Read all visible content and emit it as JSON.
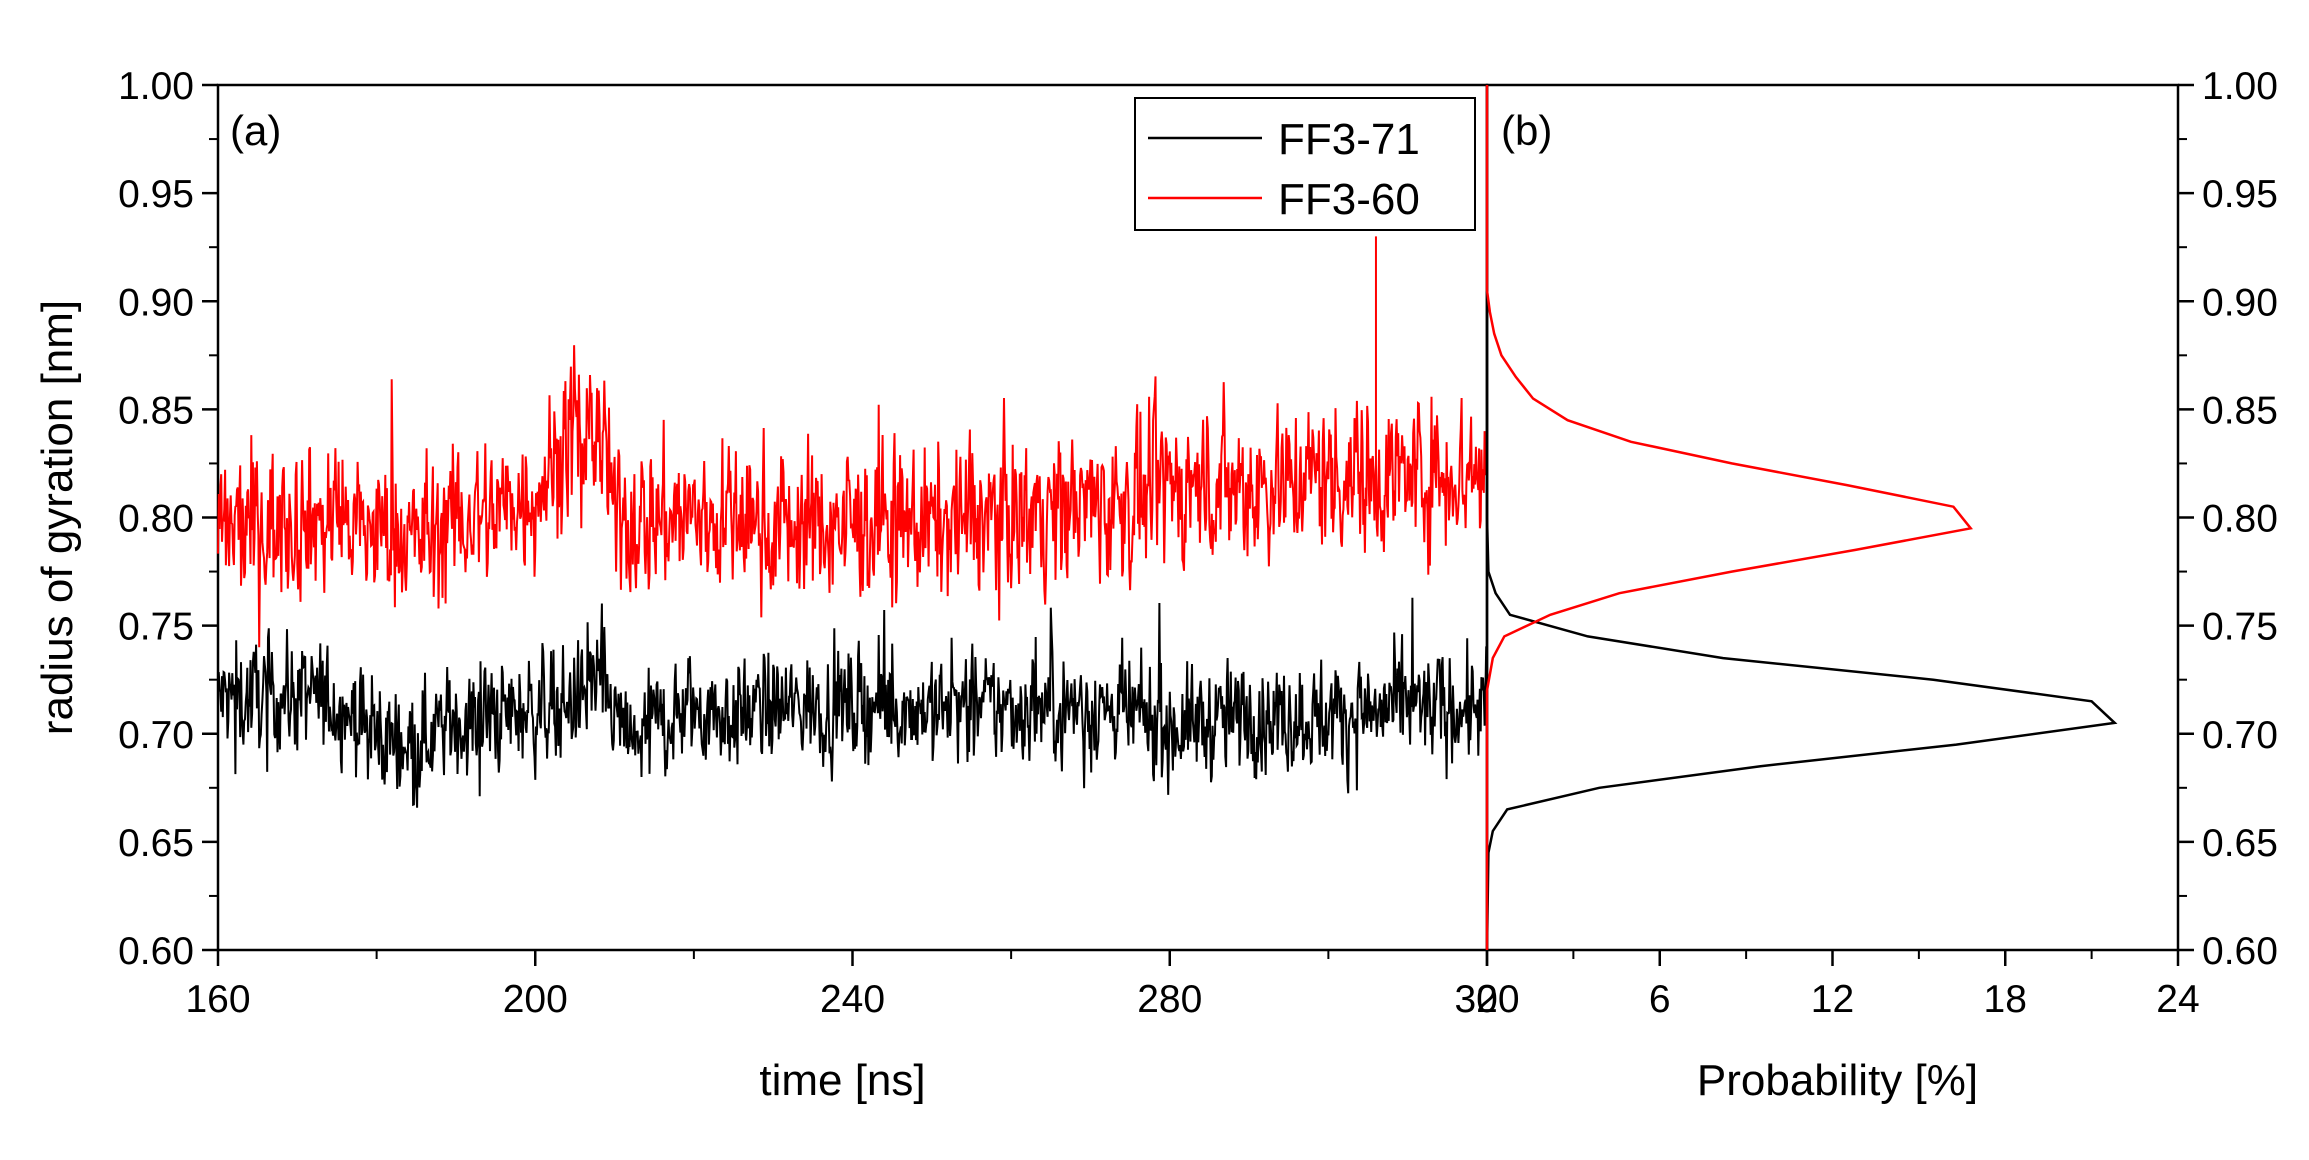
{
  "chart_data": [
    {
      "type": "line",
      "panel_label": "(a)",
      "xlabel": "time [ns]",
      "ylabel": "radius of gyration [nm]",
      "xlim": [
        160,
        320
      ],
      "ylim": [
        0.6,
        1.0
      ],
      "x_ticks": [
        160,
        200,
        240,
        280,
        320
      ],
      "x_tick_labels": [
        "160",
        "200",
        "240",
        "280",
        "320"
      ],
      "y_ticks": [
        0.6,
        0.65,
        0.7,
        0.75,
        0.8,
        0.85,
        0.9,
        0.95,
        1.0
      ],
      "y_tick_labels": [
        "0.60",
        "0.65",
        "0.70",
        "0.75",
        "0.80",
        "0.85",
        "0.90",
        "0.95",
        "1.00"
      ],
      "legend_position": "top-right",
      "series": [
        {
          "name": "FF3-71",
          "color": "#000000",
          "x": [
            160,
            170,
            175,
            178,
            180,
            185,
            190,
            195,
            200,
            205,
            208,
            210,
            212,
            215,
            220,
            225,
            230,
            240,
            250,
            260,
            270,
            275,
            280,
            290,
            300,
            310,
            320
          ],
          "mean": [
            0.716,
            0.718,
            0.715,
            0.705,
            0.697,
            0.698,
            0.705,
            0.708,
            0.712,
            0.715,
            0.725,
            0.708,
            0.695,
            0.705,
            0.712,
            0.708,
            0.712,
            0.713,
            0.712,
            0.712,
            0.713,
            0.708,
            0.703,
            0.708,
            0.708,
            0.712,
            0.712
          ],
          "noise_amplitude": 0.016,
          "min": 0.65,
          "max": 0.77
        },
        {
          "name": "FF3-60",
          "color": "#ff0000",
          "x": [
            160,
            170,
            175,
            180,
            185,
            190,
            195,
            200,
            205,
            208,
            210,
            215,
            220,
            230,
            240,
            250,
            260,
            270,
            275,
            280,
            290,
            300,
            310,
            320
          ],
          "mean": [
            0.792,
            0.8,
            0.798,
            0.793,
            0.79,
            0.797,
            0.803,
            0.812,
            0.84,
            0.84,
            0.8,
            0.8,
            0.8,
            0.797,
            0.797,
            0.797,
            0.802,
            0.807,
            0.805,
            0.815,
            0.815,
            0.82,
            0.82,
            0.822
          ],
          "noise_amplitude": 0.022,
          "min": 0.74,
          "max": 0.93
        }
      ]
    },
    {
      "type": "line",
      "panel_label": "(b)",
      "xlabel": "Probability [%]",
      "ylabel": "",
      "xlim": [
        0,
        24
      ],
      "ylim": [
        0.6,
        1.0
      ],
      "x_ticks": [
        0,
        6,
        12,
        18,
        24
      ],
      "x_tick_labels": [
        "0",
        "6",
        "12",
        "18",
        "24"
      ],
      "y_ticks": [
        0.6,
        0.65,
        0.7,
        0.75,
        0.8,
        0.85,
        0.9,
        0.95,
        1.0
      ],
      "y_tick_labels": [
        "0.60",
        "0.65",
        "0.70",
        "0.75",
        "0.80",
        "0.85",
        "0.90",
        "0.95",
        "1.00"
      ],
      "series": [
        {
          "name": "FF3-71",
          "color": "#000000",
          "y": [
            0.6,
            0.645,
            0.655,
            0.665,
            0.675,
            0.685,
            0.695,
            0.705,
            0.715,
            0.725,
            0.735,
            0.745,
            0.755,
            0.765,
            0.775,
            0.8,
            1.0
          ],
          "x": [
            0.0,
            0.05,
            0.2,
            0.7,
            3.9,
            9.5,
            16.3,
            21.8,
            21.0,
            15.5,
            8.2,
            3.5,
            0.8,
            0.3,
            0.05,
            0.0,
            0.0
          ]
        },
        {
          "name": "FF3-60",
          "color": "#ff0000",
          "y": [
            0.6,
            0.72,
            0.735,
            0.745,
            0.755,
            0.765,
            0.775,
            0.785,
            0.795,
            0.805,
            0.815,
            0.825,
            0.835,
            0.845,
            0.855,
            0.865,
            0.875,
            0.885,
            0.895,
            0.905,
            1.0
          ],
          "x": [
            0.0,
            0.0,
            0.2,
            0.6,
            2.2,
            4.6,
            8.5,
            12.8,
            16.8,
            16.2,
            12.5,
            8.5,
            5.0,
            2.8,
            1.6,
            1.0,
            0.5,
            0.25,
            0.1,
            0.0,
            0.0
          ]
        }
      ]
    }
  ]
}
